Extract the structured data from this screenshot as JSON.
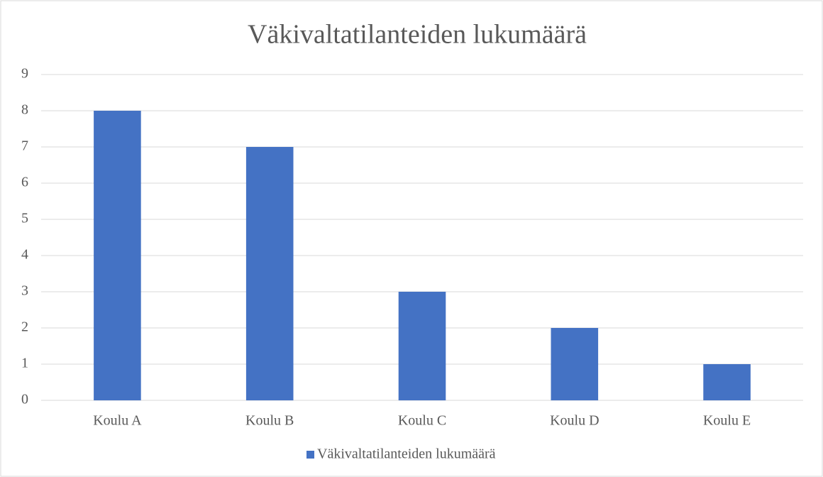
{
  "chart_data": {
    "type": "bar",
    "title": "Väkivaltatilanteiden lukumäärä",
    "categories": [
      "Koulu A",
      "Koulu B",
      "Koulu C",
      "Koulu D",
      "Koulu E"
    ],
    "series": [
      {
        "name": "Väkivaltatilanteiden lukumäärä",
        "color": "#4472c4",
        "values": [
          8,
          7,
          3,
          2,
          1
        ]
      }
    ],
    "ylim": [
      0,
      9
    ],
    "yticks": [
      0,
      1,
      2,
      3,
      4,
      5,
      6,
      7,
      8,
      9
    ],
    "grid": true,
    "legend": "bottom"
  }
}
